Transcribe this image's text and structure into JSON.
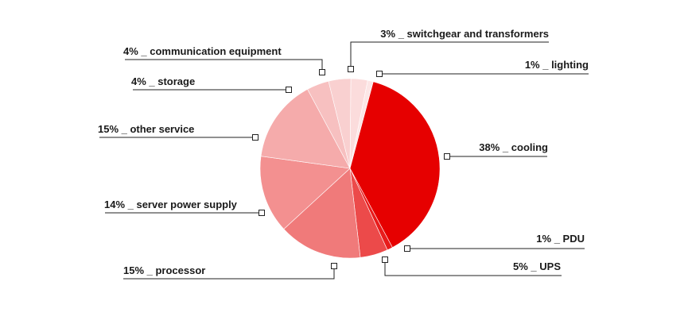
{
  "chart_data": {
    "type": "pie",
    "title": "",
    "start_angle_deg": 15,
    "direction": "clockwise",
    "slices": [
      {
        "key": "cooling",
        "value": 38,
        "label": "38% _ cooling",
        "color": "#e60000"
      },
      {
        "key": "pdu",
        "value": 1,
        "label": "1% _ PDU",
        "color": "#e81c1c"
      },
      {
        "key": "ups",
        "value": 5,
        "label": "5% _ UPS",
        "color": "#ec4a4a"
      },
      {
        "key": "processor",
        "value": 15,
        "label": "15% _ processor",
        "color": "#f07a7a"
      },
      {
        "key": "server-power-supply",
        "value": 14,
        "label": "14% _ server power supply",
        "color": "#f39090"
      },
      {
        "key": "other-service",
        "value": 15,
        "label": "15% _ other service",
        "color": "#f5abab"
      },
      {
        "key": "storage",
        "value": 4,
        "label": "4% _ storage",
        "color": "#f7c0c0"
      },
      {
        "key": "communication-equipment",
        "value": 4,
        "label": "4% _ communication equipment",
        "color": "#f9d0d0"
      },
      {
        "key": "switchgear-and-transformers",
        "value": 3,
        "label": "3% _ switchgear and transformers",
        "color": "#fbdcdc"
      },
      {
        "key": "lighting",
        "value": 1,
        "label": "1% _ lighting",
        "color": "#fce6e6"
      }
    ]
  }
}
